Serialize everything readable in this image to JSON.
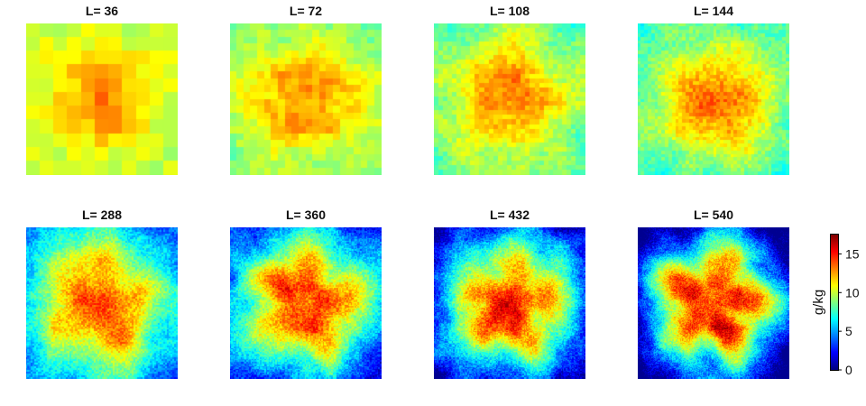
{
  "chart_data": {
    "type": "heatmap",
    "panel_prefix": "L= ",
    "panels": [
      {
        "label": "L= 36",
        "L": 36
      },
      {
        "label": "L= 72",
        "L": 72
      },
      {
        "label": "L= 108",
        "L": 108
      },
      {
        "label": "L= 144",
        "L": 144
      },
      {
        "label": "L= 288",
        "L": 288
      },
      {
        "label": "L= 360",
        "L": 360
      },
      {
        "label": "L= 432",
        "L": 432
      },
      {
        "label": "L= 540",
        "L": 540
      }
    ],
    "colorbar": {
      "label": "g/kg",
      "ticks": [
        "0",
        "5",
        "10",
        "15"
      ],
      "tick_values": [
        0,
        5,
        10,
        15
      ],
      "range": [
        0,
        17.5
      ],
      "colormap": "jet"
    }
  }
}
